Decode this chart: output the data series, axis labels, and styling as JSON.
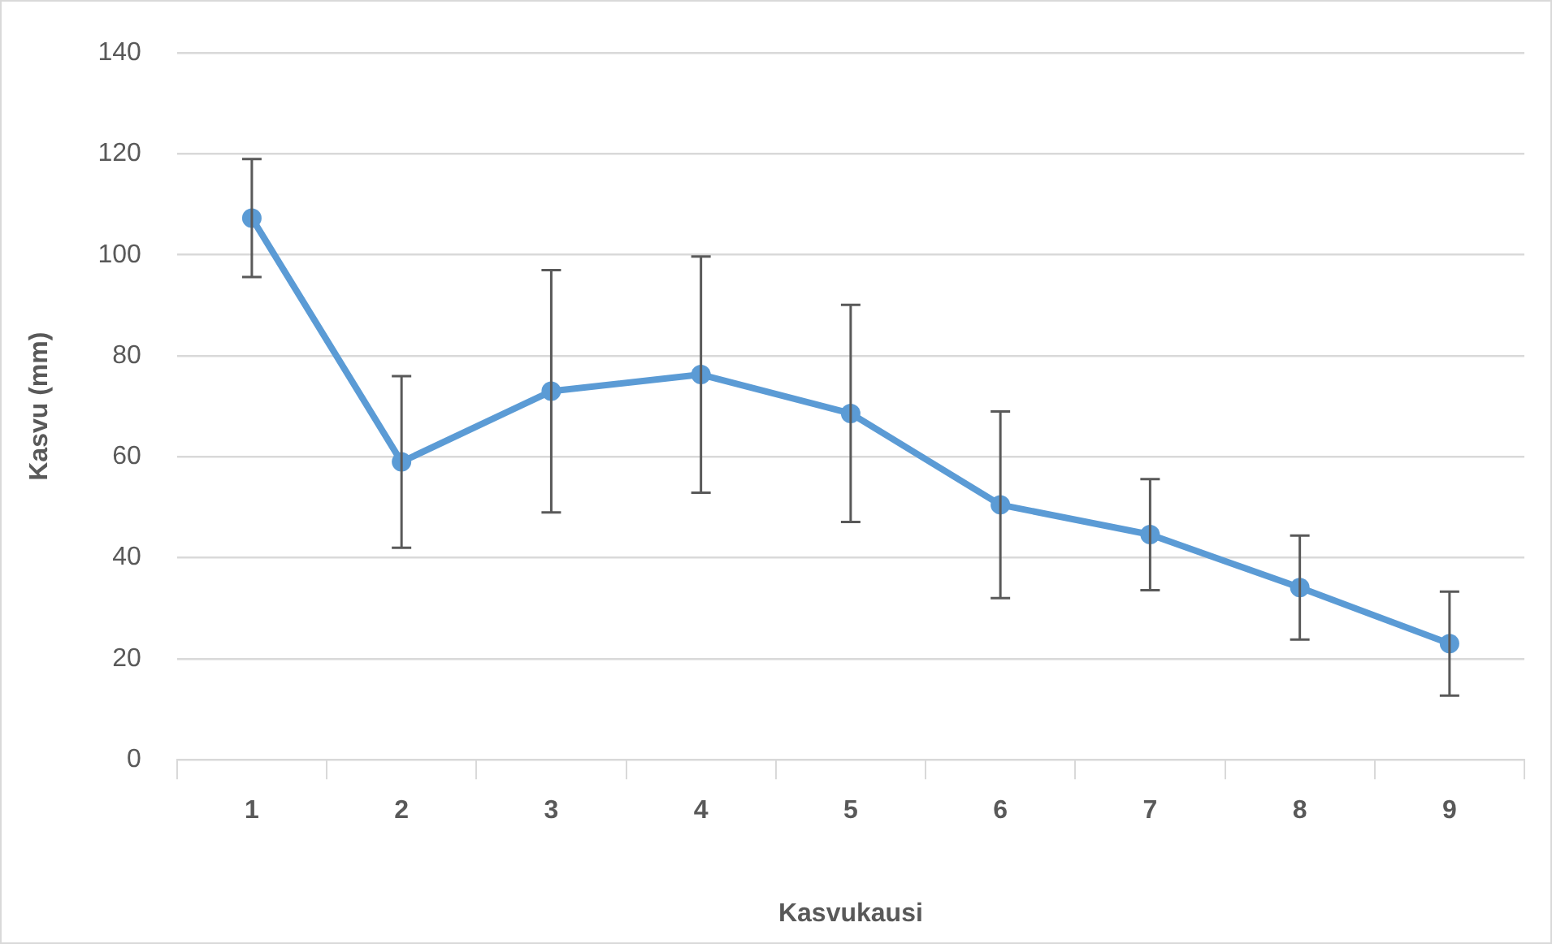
{
  "chart_data": {
    "type": "line",
    "xlabel": "Kasvukausi",
    "ylabel": "Kasvu (mm)",
    "categories": [
      "1",
      "2",
      "3",
      "4",
      "5",
      "6",
      "7",
      "8",
      "9"
    ],
    "series": [
      {
        "color": "#5b9bd5",
        "values": [
          107.3,
          59.0,
          73.0,
          76.3,
          68.6,
          50.5,
          44.6,
          34.1,
          23.0
        ],
        "errors": [
          11.7,
          17.0,
          24.0,
          23.4,
          21.5,
          18.5,
          11.0,
          10.3,
          10.3
        ]
      }
    ],
    "ylim": [
      0,
      140
    ],
    "yticks": [
      0,
      20,
      40,
      60,
      80,
      100,
      120,
      140
    ],
    "grid": "y",
    "legend": false,
    "marker": "circle",
    "line_style": "solid"
  }
}
